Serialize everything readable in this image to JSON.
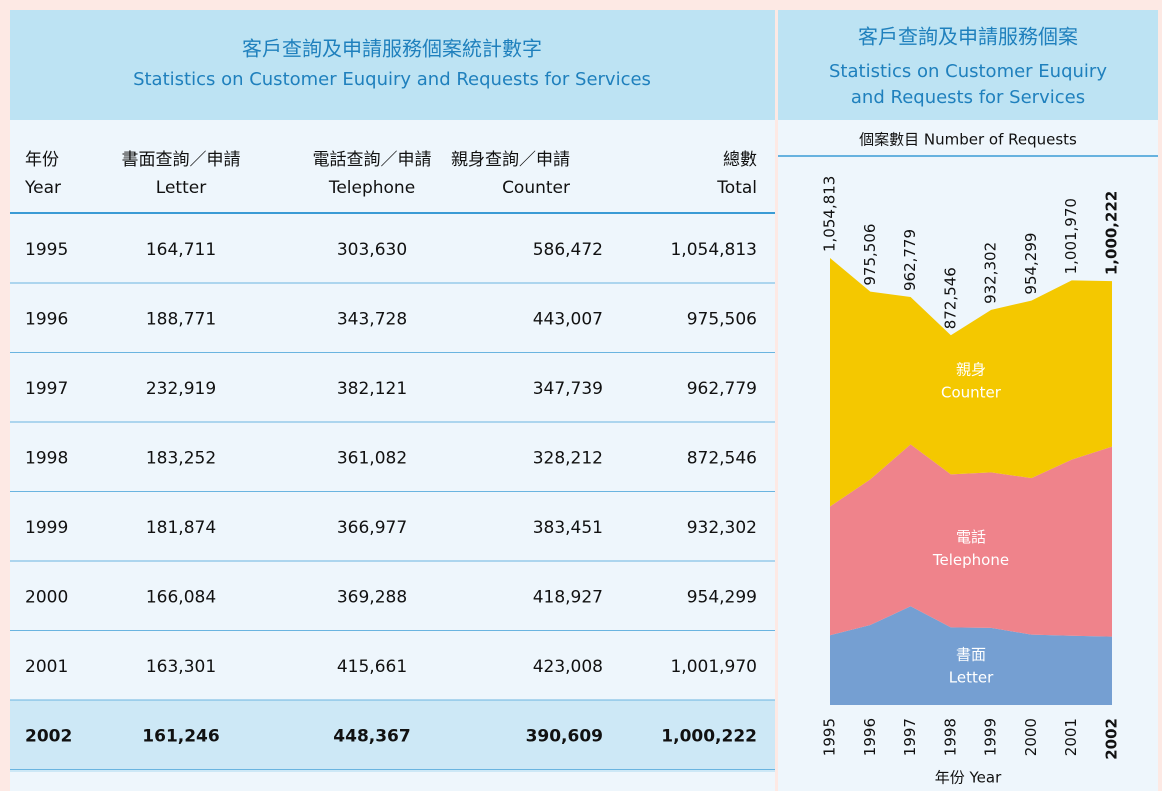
{
  "table": {
    "title": "客戶查詢及申請服務個案統計數字",
    "title_en": "Statistics on Customer Euquiry and Requests for Services",
    "headers": [
      [
        "年份",
        "Year"
      ],
      [
        "書面查詢／申請",
        "Letter"
      ],
      [
        "電話查詢／申請",
        "Telephone"
      ],
      [
        "親身查詢／申請",
        "Counter"
      ],
      [
        "總數",
        "Total"
      ]
    ],
    "rows": [
      [
        "1995",
        "164,711",
        "303,630",
        "586,472",
        "1,054,813"
      ],
      [
        "1996",
        "188,771",
        "343,728",
        "443,007",
        "975,506"
      ],
      [
        "1997",
        "232,919",
        "382,121",
        "347,739",
        "962,779"
      ],
      [
        "1998",
        "183,252",
        "361,082",
        "328,212",
        "872,546"
      ],
      [
        "1999",
        "181,874",
        "366,977",
        "383,451",
        "932,302"
      ],
      [
        "2000",
        "166,084",
        "369,288",
        "418,927",
        "954,299"
      ],
      [
        "2001",
        "163,301",
        "415,661",
        "423,008",
        "1,001,970"
      ],
      [
        "2002",
        "161,246",
        "448,367",
        "390,609",
        "1,000,222"
      ]
    ]
  },
  "chart_data": {
    "type": "area",
    "title": "客戶查詢及申請服務個案",
    "title_en": [
      "Statistics on Customer Euquiry",
      "and Requests for Services"
    ],
    "subtitle": "個案數目 Number of Requests",
    "x_label": "年份 Year",
    "categories": [
      "1995",
      "1996",
      "1997",
      "1998",
      "1999",
      "2000",
      "2001",
      "2002"
    ],
    "series": [
      {
        "name": [
          "書面",
          "Letter"
        ],
        "color": "#759fd2",
        "values": [
          164711,
          188771,
          232919,
          183252,
          181874,
          166084,
          163301,
          161246
        ]
      },
      {
        "name": [
          "電話",
          "Telephone"
        ],
        "color": "#ef838b",
        "values": [
          303630,
          343728,
          382121,
          361082,
          366977,
          369288,
          415661,
          448367
        ]
      },
      {
        "name": [
          "親身",
          "Counter"
        ],
        "color": "#f4c800",
        "values": [
          586472,
          443007,
          347739,
          328212,
          383451,
          418927,
          423008,
          390609
        ]
      }
    ],
    "totals": [
      1054813,
      975506,
      962779,
      872546,
      932302,
      954299,
      1001970,
      1000222
    ],
    "total_labels": [
      "1,054,813",
      "975,506",
      "962,779",
      "872,546",
      "932,302",
      "954,299",
      "1,001,970",
      "1,000,222"
    ]
  }
}
